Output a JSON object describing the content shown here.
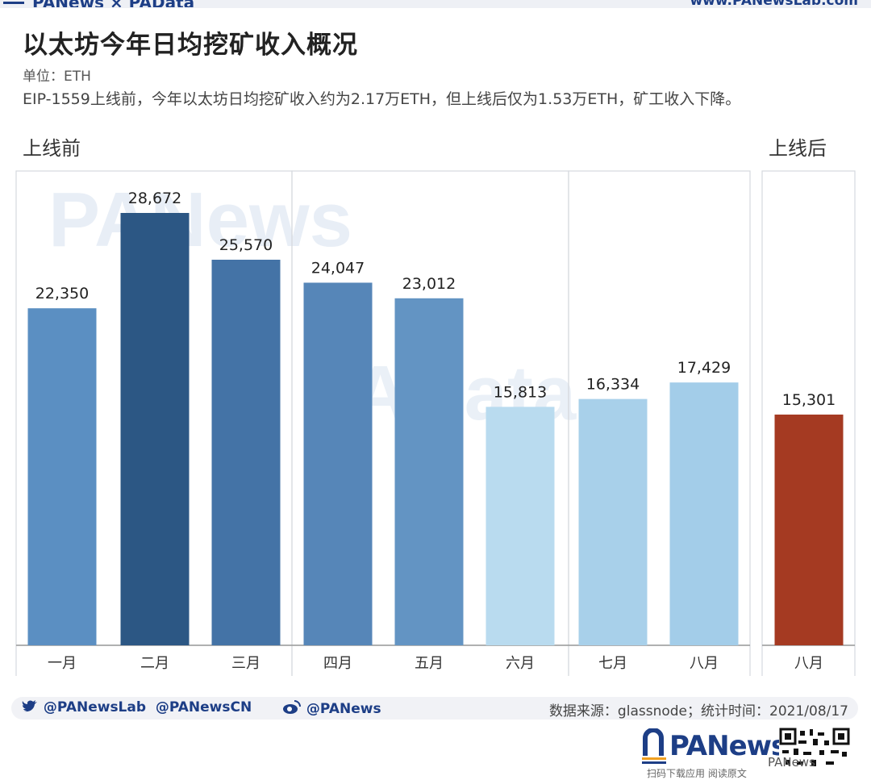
{
  "header": {
    "brand_left": "PANews × PAData",
    "brand_right": "www.PANewsLab.com"
  },
  "title": "以太坊今年日均挖矿收入概况",
  "unit": "单位：ETH",
  "description": "EIP-1559上线前，今年以太坊日均挖矿收入约为2.17万ETH，但上线后仅为1.53万ETH，矿工收入下降。",
  "sections": {
    "before": "上线前",
    "after": "上线后"
  },
  "watermark": {
    "top": "PANews",
    "mid": "PAData"
  },
  "chart_data": {
    "type": "bar",
    "title": "以太坊今年日均挖矿收入概况",
    "unit": "ETH",
    "categories": [
      "一月",
      "二月",
      "三月",
      "四月",
      "五月",
      "六月",
      "七月",
      "八月",
      "八月"
    ],
    "values": [
      22350,
      28672,
      25570,
      24047,
      23012,
      15813,
      16334,
      17429,
      15301
    ],
    "value_labels": [
      "22,350",
      "28,672",
      "25,570",
      "24,047",
      "23,012",
      "15,813",
      "16,334",
      "17,429",
      "15,301"
    ],
    "colors": [
      "#5b8fc2",
      "#2c5784",
      "#4473a6",
      "#5686b8",
      "#6394c3",
      "#b9dbef",
      "#a8d0ea",
      "#a3cde9",
      "#a53a22"
    ],
    "groups": [
      "上线前",
      "上线前",
      "上线前",
      "上线前",
      "上线前",
      "上线前",
      "上线前",
      "上线前",
      "上线后"
    ],
    "ylim": [
      0,
      30000
    ],
    "grid": false
  },
  "footer": {
    "twitter_handles": "@PANewsLab  @PANewsCN",
    "weibo_handle": "@PANews",
    "source": "数据来源：glassnode；统计时间：2021/08/17",
    "logo_text": "PANews",
    "scan_text": "扫码下载应用 阅读原文",
    "wechat_label": "PANews"
  }
}
